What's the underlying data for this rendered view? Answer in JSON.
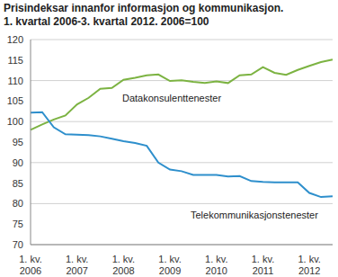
{
  "chart_data": {
    "type": "line",
    "title": "Prisindeksar innanfor informasjon og kommunikasjon.",
    "subtitle": "1. kvartal 2006-3. kvartal 2012. 2006=100",
    "categories": [
      "1. kv.\n2006",
      null,
      null,
      null,
      "1. kv.\n2007",
      null,
      null,
      null,
      "1. kv.\n2008",
      null,
      null,
      null,
      "1. kv.\n2009",
      null,
      null,
      null,
      "1. kv.\n2010",
      null,
      null,
      null,
      "1. kv.\n2011",
      null,
      null,
      null,
      "1. kv.\n2012",
      null,
      null
    ],
    "series": [
      {
        "name": "Datakonsulenttenester",
        "color": "#7cb342",
        "values": [
          98,
          99.3,
          100.5,
          101.5,
          104.2,
          105.8,
          108,
          108.2,
          110.2,
          110.7,
          111.3,
          111.5,
          109.9,
          110.1,
          109.7,
          109.4,
          109.8,
          109.4,
          111.3,
          111.5,
          113.3,
          111.9,
          111.4,
          112.6,
          113.6,
          114.5,
          115.1
        ]
      },
      {
        "name": "Telekommunikasjonstenester",
        "color": "#2e8fcc",
        "values": [
          102.2,
          102.3,
          98.6,
          96.9,
          96.8,
          96.7,
          96.4,
          95.8,
          95.2,
          94.8,
          94.1,
          90,
          88.3,
          87.9,
          87,
          87,
          87,
          86.6,
          86.7,
          85.5,
          85.3,
          85.2,
          85.2,
          85.2,
          82.6,
          81.6,
          81.8
        ]
      }
    ],
    "ylim": [
      70,
      120
    ],
    "yticks": [
      70,
      75,
      80,
      85,
      90,
      95,
      100,
      105,
      110,
      115,
      120
    ],
    "grid": true
  }
}
